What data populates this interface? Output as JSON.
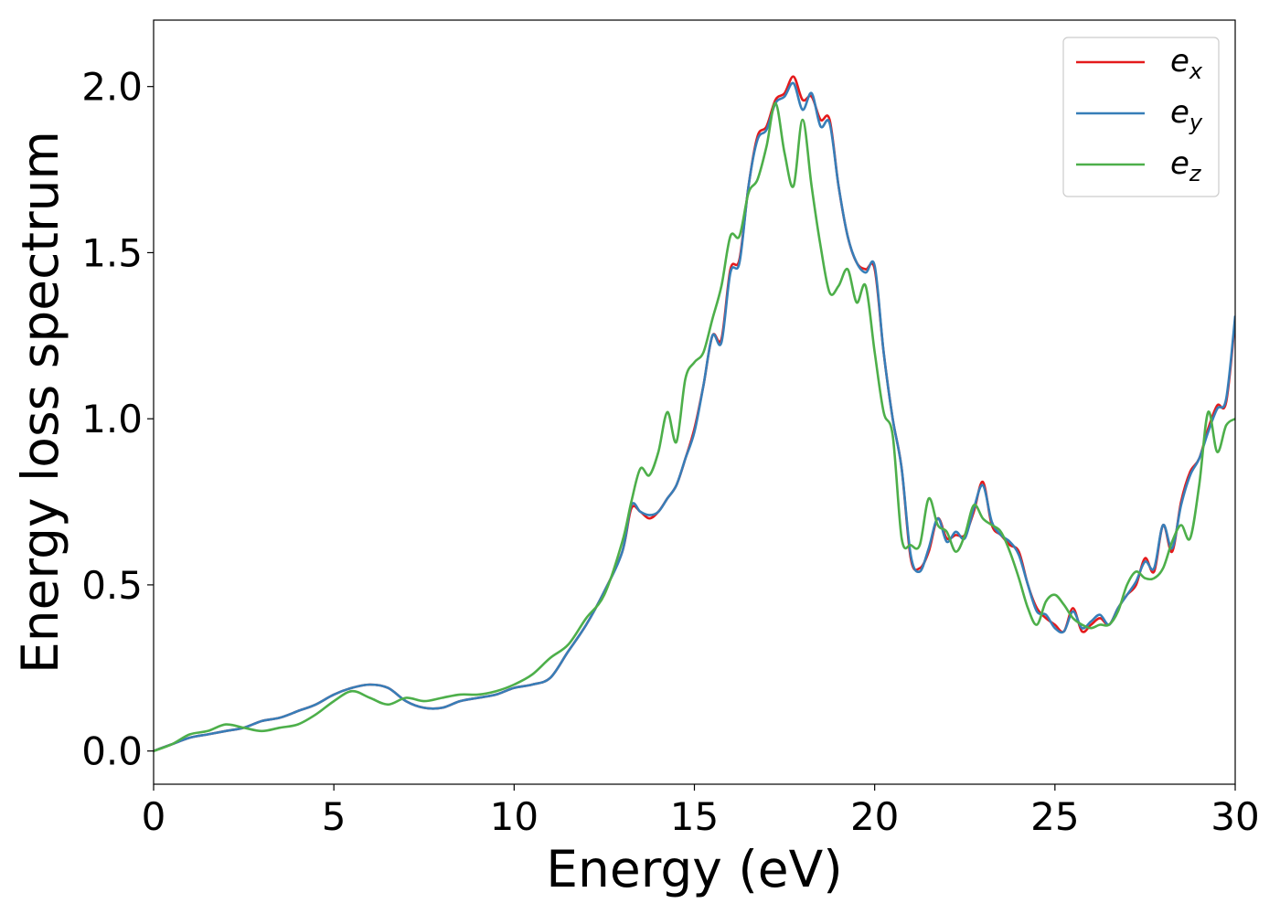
{
  "chart_data": {
    "type": "line",
    "xlabel": "Energy (eV)",
    "ylabel": "Energy loss spectrum",
    "xlim": [
      0,
      30
    ],
    "ylim": [
      -0.1,
      2.2
    ],
    "xticks": [
      0,
      5,
      10,
      15,
      20,
      25,
      30
    ],
    "xtick_labels": [
      "0",
      "5",
      "10",
      "15",
      "20",
      "25",
      "30"
    ],
    "yticks": [
      0.0,
      0.5,
      1.0,
      1.5,
      2.0
    ],
    "ytick_labels": [
      "0.0",
      "0.5",
      "1.0",
      "1.5",
      "2.0"
    ],
    "grid": false,
    "legend_position": "top-right",
    "series": [
      {
        "name": "e_x",
        "label_main": "e",
        "label_sub": "x",
        "color": "#e41a1c",
        "x": [
          0,
          0.5,
          1,
          1.5,
          2,
          2.5,
          3,
          3.5,
          4,
          4.5,
          5,
          5.5,
          6,
          6.5,
          7,
          7.5,
          8,
          8.5,
          9,
          9.5,
          10,
          10.5,
          11,
          11.5,
          12,
          12.5,
          13,
          13.25,
          13.5,
          13.75,
          14,
          14.25,
          14.5,
          14.75,
          15,
          15.25,
          15.5,
          15.75,
          16,
          16.25,
          16.5,
          16.75,
          17,
          17.25,
          17.5,
          17.75,
          18,
          18.25,
          18.5,
          18.75,
          19,
          19.25,
          19.5,
          19.75,
          20,
          20.25,
          20.5,
          20.75,
          21,
          21.25,
          21.5,
          21.75,
          22,
          22.25,
          22.5,
          22.75,
          23,
          23.25,
          23.5,
          23.75,
          24,
          24.25,
          24.5,
          24.75,
          25,
          25.25,
          25.5,
          25.75,
          26,
          26.25,
          26.5,
          26.75,
          27,
          27.25,
          27.5,
          27.75,
          28,
          28.25,
          28.5,
          28.75,
          29,
          29.25,
          29.5,
          29.75,
          30
        ],
        "y": [
          0.0,
          0.02,
          0.04,
          0.05,
          0.06,
          0.07,
          0.09,
          0.1,
          0.12,
          0.14,
          0.17,
          0.19,
          0.2,
          0.19,
          0.15,
          0.13,
          0.13,
          0.15,
          0.16,
          0.17,
          0.19,
          0.2,
          0.22,
          0.3,
          0.38,
          0.48,
          0.6,
          0.73,
          0.72,
          0.7,
          0.72,
          0.76,
          0.8,
          0.88,
          0.97,
          1.1,
          1.25,
          1.24,
          1.45,
          1.48,
          1.7,
          1.85,
          1.88,
          1.96,
          1.98,
          2.03,
          1.96,
          1.97,
          1.9,
          1.9,
          1.7,
          1.55,
          1.47,
          1.45,
          1.45,
          1.2,
          1.0,
          0.85,
          0.58,
          0.55,
          0.6,
          0.7,
          0.64,
          0.65,
          0.65,
          0.72,
          0.81,
          0.68,
          0.65,
          0.62,
          0.6,
          0.5,
          0.43,
          0.4,
          0.38,
          0.36,
          0.43,
          0.36,
          0.38,
          0.4,
          0.38,
          0.43,
          0.47,
          0.5,
          0.58,
          0.54,
          0.68,
          0.6,
          0.75,
          0.84,
          0.88,
          0.97,
          1.04,
          1.05,
          1.3
        ]
      },
      {
        "name": "e_y",
        "label_main": "e",
        "label_sub": "y",
        "color": "#377eb8",
        "x": [
          0,
          0.5,
          1,
          1.5,
          2,
          2.5,
          3,
          3.5,
          4,
          4.5,
          5,
          5.5,
          6,
          6.5,
          7,
          7.5,
          8,
          8.5,
          9,
          9.5,
          10,
          10.5,
          11,
          11.5,
          12,
          12.5,
          13,
          13.25,
          13.5,
          13.75,
          14,
          14.25,
          14.5,
          14.75,
          15,
          15.25,
          15.5,
          15.75,
          16,
          16.25,
          16.5,
          16.75,
          17,
          17.25,
          17.5,
          17.75,
          18,
          18.25,
          18.5,
          18.75,
          19,
          19.25,
          19.5,
          19.75,
          20,
          20.25,
          20.5,
          20.75,
          21,
          21.25,
          21.5,
          21.75,
          22,
          22.25,
          22.5,
          22.75,
          23,
          23.25,
          23.5,
          23.75,
          24,
          24.25,
          24.5,
          24.75,
          25,
          25.25,
          25.5,
          25.75,
          26,
          26.25,
          26.5,
          26.75,
          27,
          27.25,
          27.5,
          27.75,
          28,
          28.25,
          28.5,
          28.75,
          29,
          29.25,
          29.5,
          29.75,
          30
        ],
        "y": [
          0.0,
          0.02,
          0.04,
          0.05,
          0.06,
          0.07,
          0.09,
          0.1,
          0.12,
          0.14,
          0.17,
          0.19,
          0.2,
          0.19,
          0.15,
          0.13,
          0.13,
          0.15,
          0.16,
          0.17,
          0.19,
          0.2,
          0.22,
          0.3,
          0.38,
          0.48,
          0.6,
          0.74,
          0.72,
          0.71,
          0.72,
          0.76,
          0.8,
          0.88,
          0.96,
          1.1,
          1.25,
          1.23,
          1.44,
          1.47,
          1.7,
          1.84,
          1.87,
          1.95,
          1.97,
          2.01,
          1.93,
          1.98,
          1.88,
          1.89,
          1.7,
          1.55,
          1.47,
          1.44,
          1.46,
          1.2,
          1.0,
          0.85,
          0.59,
          0.54,
          0.61,
          0.7,
          0.63,
          0.66,
          0.64,
          0.73,
          0.8,
          0.69,
          0.65,
          0.63,
          0.59,
          0.5,
          0.42,
          0.41,
          0.37,
          0.36,
          0.42,
          0.37,
          0.39,
          0.41,
          0.38,
          0.43,
          0.47,
          0.51,
          0.57,
          0.55,
          0.68,
          0.61,
          0.74,
          0.83,
          0.88,
          0.96,
          1.03,
          1.06,
          1.31
        ]
      },
      {
        "name": "e_z",
        "label_main": "e",
        "label_sub": "z",
        "color": "#4daf4a",
        "x": [
          0,
          0.5,
          1,
          1.5,
          2,
          2.5,
          3,
          3.5,
          4,
          4.5,
          5,
          5.5,
          6,
          6.5,
          7,
          7.5,
          8,
          8.5,
          9,
          9.5,
          10,
          10.5,
          11,
          11.5,
          12,
          12.5,
          13,
          13.25,
          13.5,
          13.75,
          14,
          14.25,
          14.5,
          14.75,
          15,
          15.25,
          15.5,
          15.75,
          16,
          16.25,
          16.5,
          16.75,
          17,
          17.25,
          17.5,
          17.75,
          18,
          18.25,
          18.5,
          18.75,
          19,
          19.25,
          19.5,
          19.75,
          20,
          20.25,
          20.5,
          20.75,
          21,
          21.25,
          21.5,
          21.75,
          22,
          22.25,
          22.5,
          22.75,
          23,
          23.25,
          23.5,
          23.75,
          24,
          24.25,
          24.5,
          24.75,
          25,
          25.25,
          25.5,
          25.75,
          26,
          26.25,
          26.5,
          26.75,
          27,
          27.25,
          27.5,
          27.75,
          28,
          28.25,
          28.5,
          28.75,
          29,
          29.25,
          29.5,
          29.75,
          30
        ],
        "y": [
          0.0,
          0.02,
          0.05,
          0.06,
          0.08,
          0.07,
          0.06,
          0.07,
          0.08,
          0.11,
          0.15,
          0.18,
          0.16,
          0.14,
          0.16,
          0.15,
          0.16,
          0.17,
          0.17,
          0.18,
          0.2,
          0.23,
          0.28,
          0.32,
          0.4,
          0.47,
          0.63,
          0.75,
          0.85,
          0.83,
          0.9,
          1.02,
          0.93,
          1.12,
          1.17,
          1.2,
          1.3,
          1.4,
          1.55,
          1.55,
          1.68,
          1.72,
          1.82,
          1.95,
          1.8,
          1.7,
          1.9,
          1.7,
          1.52,
          1.38,
          1.4,
          1.45,
          1.35,
          1.4,
          1.2,
          1.02,
          0.95,
          0.64,
          0.62,
          0.62,
          0.76,
          0.68,
          0.66,
          0.6,
          0.65,
          0.74,
          0.7,
          0.68,
          0.66,
          0.6,
          0.52,
          0.43,
          0.38,
          0.45,
          0.47,
          0.44,
          0.4,
          0.38,
          0.37,
          0.38,
          0.38,
          0.42,
          0.5,
          0.54,
          0.52,
          0.52,
          0.55,
          0.63,
          0.68,
          0.64,
          0.8,
          1.02,
          0.9,
          0.98,
          1.0
        ]
      }
    ]
  }
}
